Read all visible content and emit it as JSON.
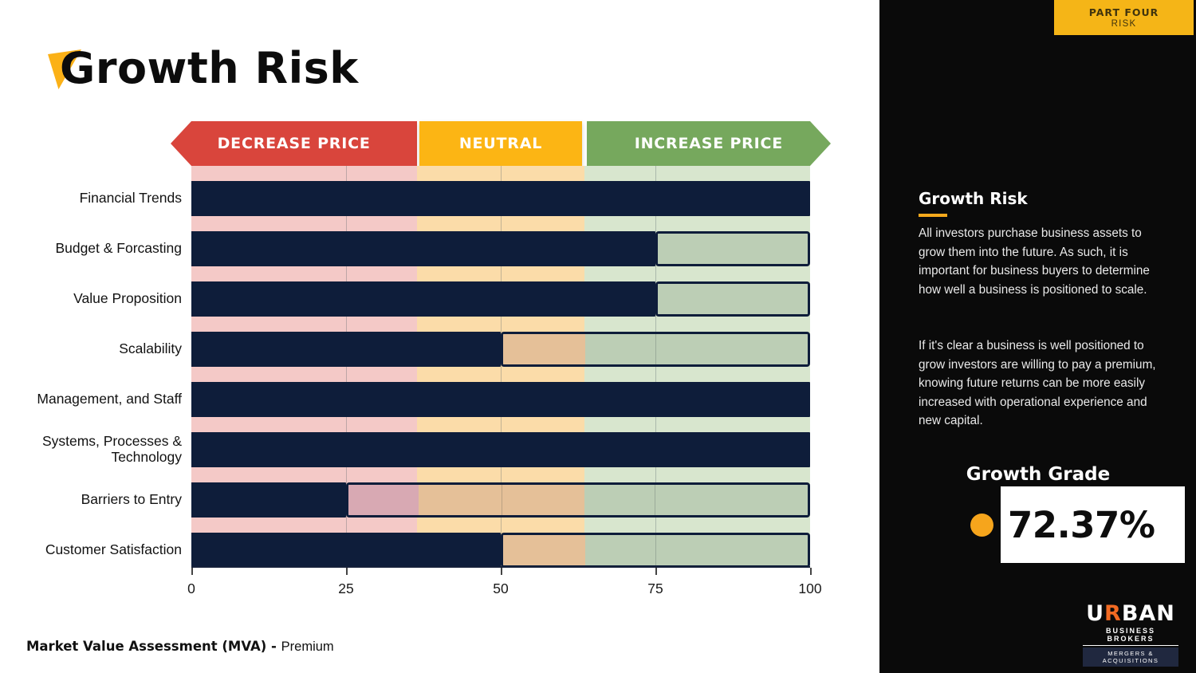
{
  "title": "Growth Risk",
  "chart_data": {
    "type": "bar",
    "orientation": "horizontal",
    "title": "Growth Risk",
    "categories": [
      "Financial Trends",
      "Budget & Forcasting",
      "Value Proposition",
      "Scalability",
      "Management, and Staff",
      "Systems, Processes & Technology",
      "Barriers to Entry",
      "Customer Satisfaction"
    ],
    "values": [
      100,
      75,
      75,
      50,
      100,
      100,
      25,
      50
    ],
    "xlim": [
      0,
      100
    ],
    "xticks": [
      0,
      25,
      50,
      75,
      100
    ],
    "grid": true,
    "bar_color": "#0E1D3A",
    "legend_position": "top",
    "zones": [
      {
        "label": "DECREASE PRICE",
        "from": 0,
        "to": 36.5,
        "banner_color": "#D9453C",
        "band_color": "#F4C9C7",
        "highlight_color": "#D8A9B3"
      },
      {
        "label": "NEUTRAL",
        "from": 36.5,
        "to": 63.5,
        "banner_color": "#FCB514",
        "band_color": "#FBDCA9",
        "highlight_color": "#E5C098"
      },
      {
        "label": "INCREASE PRICE",
        "from": 63.5,
        "to": 100,
        "banner_color": "#76A85D",
        "band_color": "#D8E6CE",
        "highlight_color": "#BCCEB5"
      }
    ]
  },
  "sidebar": {
    "tag_line1": "PART FOUR",
    "tag_line2": "RISK",
    "heading": "Growth Risk",
    "paragraph1": "All investors purchase business assets to grow them into the future. As such, it is important for business buyers to determine how well a business is positioned to scale.",
    "paragraph2": "If it's clear a business is well positioned to grow investors are willing to pay a premium, knowing future returns can be more easily increased with operational experience and new capital.",
    "grade_heading": "Growth Grade",
    "grade_value": "72.37%",
    "logo": {
      "urban_prefix": "U",
      "urban_r": "R",
      "urban_suffix": "BAN",
      "line2": "BUSINESS BROKERS",
      "line3": "MERGERS & ACQUISITIONS"
    }
  },
  "footer": {
    "bold": "Market Value Assessment (MVA) - ",
    "regular": "Premium"
  },
  "colors": {
    "accent_yellow": "#FBB117",
    "navy_bar": "#0E1D3A",
    "sidebar_bg": "#0a0a0a",
    "grade_dot": "#F6A51C",
    "logo_r_orange": "#F26A22"
  }
}
